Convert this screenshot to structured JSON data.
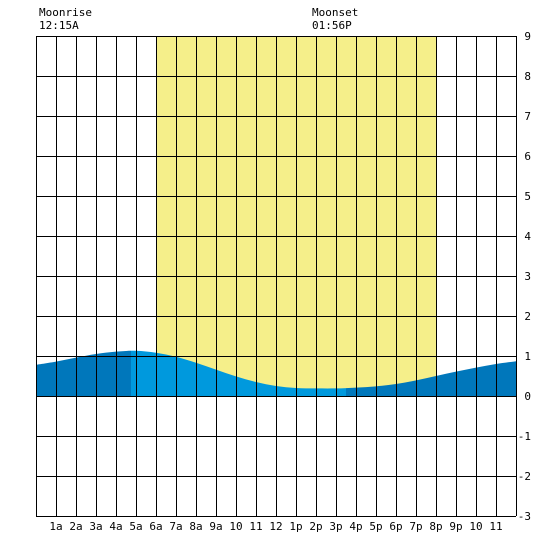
{
  "chart_data": {
    "type": "area",
    "title": "",
    "xlabel": "",
    "ylabel": "",
    "xlim": [
      0,
      24
    ],
    "ylim": [
      -3,
      9
    ],
    "grid": true,
    "x_ticks": [
      {
        "x": 1,
        "label": "1a"
      },
      {
        "x": 2,
        "label": "2a"
      },
      {
        "x": 3,
        "label": "3a"
      },
      {
        "x": 4,
        "label": "4a"
      },
      {
        "x": 5,
        "label": "5a"
      },
      {
        "x": 6,
        "label": "6a"
      },
      {
        "x": 7,
        "label": "7a"
      },
      {
        "x": 8,
        "label": "8a"
      },
      {
        "x": 9,
        "label": "9a"
      },
      {
        "x": 10,
        "label": "10"
      },
      {
        "x": 11,
        "label": "11"
      },
      {
        "x": 12,
        "label": "12"
      },
      {
        "x": 13,
        "label": "1p"
      },
      {
        "x": 14,
        "label": "2p"
      },
      {
        "x": 15,
        "label": "3p"
      },
      {
        "x": 16,
        "label": "4p"
      },
      {
        "x": 17,
        "label": "5p"
      },
      {
        "x": 18,
        "label": "6p"
      },
      {
        "x": 19,
        "label": "7p"
      },
      {
        "x": 20,
        "label": "8p"
      },
      {
        "x": 21,
        "label": "9p"
      },
      {
        "x": 22,
        "label": "10"
      },
      {
        "x": 23,
        "label": "11"
      }
    ],
    "y_ticks": [
      -3,
      -2,
      -1,
      0,
      1,
      2,
      3,
      4,
      5,
      6,
      7,
      8,
      9
    ],
    "daylight_range": [
      6,
      20
    ],
    "moon_phase_shading_range": [
      4.75,
      15.5
    ],
    "annotations": [
      {
        "label": "Moonrise",
        "time": "12:15A",
        "x": 0
      },
      {
        "label": "Moonset",
        "time": "01:56P",
        "x": 13.93
      }
    ],
    "tide_series": {
      "name": "",
      "x": [
        0,
        1,
        2,
        3,
        4,
        5,
        6,
        7,
        8,
        9,
        10,
        11,
        12,
        13,
        14,
        15,
        16,
        17,
        18,
        19,
        20,
        21,
        22,
        23,
        24
      ],
      "y": [
        0.78,
        0.86,
        0.96,
        1.05,
        1.11,
        1.13,
        1.08,
        0.98,
        0.83,
        0.66,
        0.49,
        0.35,
        0.25,
        0.2,
        0.19,
        0.19,
        0.21,
        0.24,
        0.3,
        0.39,
        0.5,
        0.61,
        0.71,
        0.8,
        0.87
      ]
    },
    "colors": {
      "daylight": "#f5ef8a",
      "tide": "#0099dd",
      "tide_shade": "#0077bb",
      "grid": "#000000",
      "background": "#ffffff"
    }
  }
}
